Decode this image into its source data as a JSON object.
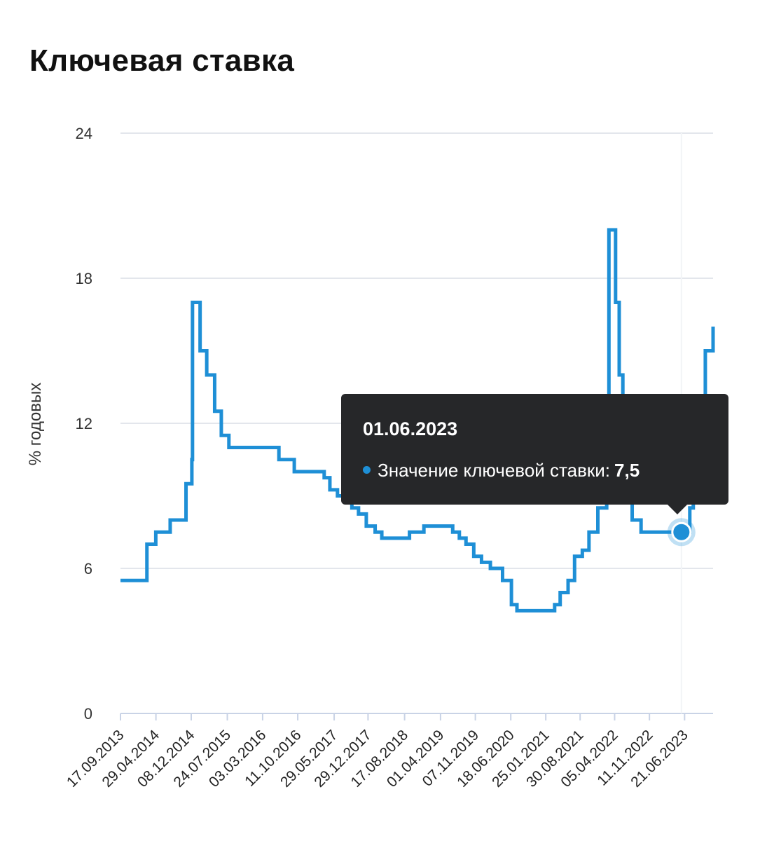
{
  "page": {
    "title": "Ключевая ставка"
  },
  "chart_data": {
    "type": "line",
    "title": "Ключевая ставка",
    "ylabel": "% годовых",
    "xlabel": "",
    "ylim": [
      0,
      24
    ],
    "yticks": [
      0,
      6,
      12,
      18,
      24
    ],
    "xlim": [
      "2013-09-17",
      "2023-12-18"
    ],
    "x_tick_labels": [
      "17.09.2013",
      "29.04.2014",
      "08.12.2014",
      "24.07.2015",
      "03.03.2016",
      "11.10.2016",
      "29.05.2017",
      "29.12.2017",
      "17.08.2018",
      "01.04.2019",
      "07.11.2019",
      "18.06.2020",
      "25.01.2021",
      "30.08.2021",
      "05.04.2022",
      "11.11.2022",
      "21.06.2023"
    ],
    "x_tick_dates": [
      "2013-09-17",
      "2014-04-29",
      "2014-12-08",
      "2015-07-24",
      "2016-03-03",
      "2016-10-11",
      "2017-05-29",
      "2017-12-29",
      "2018-08-17",
      "2019-04-01",
      "2019-11-07",
      "2020-06-18",
      "2021-01-25",
      "2021-08-30",
      "2022-04-05",
      "2022-11-11",
      "2023-06-21"
    ],
    "grid": true,
    "line_color": "#1e8fd6",
    "step": true,
    "series": [
      {
        "dates": [
          "2013-09-17",
          "2014-03-03",
          "2014-04-28",
          "2014-07-28",
          "2014-11-05",
          "2014-12-12",
          "2014-12-16",
          "2015-02-02",
          "2015-03-16",
          "2015-05-05",
          "2015-06-16",
          "2015-08-03",
          "2016-06-14",
          "2016-09-19",
          "2017-03-27",
          "2017-05-02",
          "2017-06-19",
          "2017-09-18",
          "2017-10-30",
          "2017-12-18",
          "2018-02-12",
          "2018-03-26",
          "2018-09-17",
          "2018-12-17",
          "2019-06-17",
          "2019-07-29",
          "2019-09-09",
          "2019-10-28",
          "2019-12-16",
          "2020-02-10",
          "2020-04-27",
          "2020-06-22",
          "2020-07-27",
          "2021-03-22",
          "2021-04-26",
          "2021-06-15",
          "2021-07-26",
          "2021-09-13",
          "2021-10-25",
          "2021-12-20",
          "2022-02-14",
          "2022-02-28",
          "2022-04-11",
          "2022-05-04",
          "2022-05-27",
          "2022-06-14",
          "2022-07-25",
          "2022-09-19",
          "2023-07-24",
          "2023-08-15",
          "2023-09-18",
          "2023-10-30",
          "2023-12-18"
        ],
        "values": [
          5.5,
          7.0,
          7.5,
          8.0,
          9.5,
          10.5,
          17.0,
          15.0,
          14.0,
          12.5,
          11.5,
          11.0,
          10.5,
          10.0,
          9.75,
          9.25,
          9.0,
          8.5,
          8.25,
          7.75,
          7.5,
          7.25,
          7.5,
          7.75,
          7.5,
          7.25,
          7.0,
          6.5,
          6.25,
          6.0,
          5.5,
          4.5,
          4.25,
          4.5,
          5.0,
          5.5,
          6.5,
          6.75,
          7.5,
          8.5,
          9.5,
          20.0,
          17.0,
          14.0,
          11.0,
          9.5,
          8.0,
          7.5,
          8.5,
          12.0,
          13.0,
          15.0,
          16.0
        ]
      }
    ],
    "highlight": {
      "date": "2023-06-01",
      "value": 7.5
    }
  },
  "tooltip": {
    "date": "01.06.2023",
    "label": "Значение ключевой ставки:",
    "value": "7,5"
  }
}
